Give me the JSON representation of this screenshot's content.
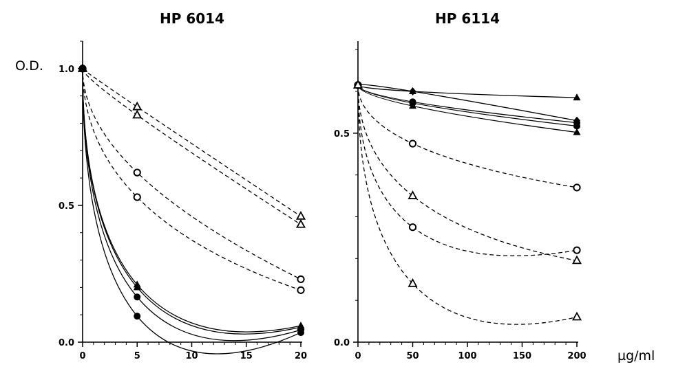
{
  "ylabel": "O.D.",
  "xunit": "µg/ml",
  "chart_data": [
    {
      "type": "line",
      "title": "HP 6014",
      "xlabel": "",
      "ylabel": "O.D.",
      "xlim": [
        0,
        20
      ],
      "ylim": [
        0,
        1.1
      ],
      "xticks": [
        "0",
        "5",
        "10",
        "15",
        "20"
      ],
      "xtick_values": [
        0,
        5,
        10,
        15,
        20
      ],
      "yticks": [
        "0.0",
        "0.5",
        "1.0"
      ],
      "ytick_values": [
        0,
        0.5,
        1.0
      ],
      "grid": false,
      "legend": "none",
      "series": [
        {
          "marker": "open-triangle",
          "style": "dashed",
          "x": [
            0,
            5,
            20
          ],
          "y": [
            1.0,
            0.86,
            0.46
          ]
        },
        {
          "marker": "open-triangle",
          "style": "dashed",
          "x": [
            0,
            5,
            20
          ],
          "y": [
            1.0,
            0.83,
            0.43
          ]
        },
        {
          "marker": "open-circle",
          "style": "dashed",
          "x": [
            0,
            5,
            20
          ],
          "y": [
            1.0,
            0.62,
            0.23
          ]
        },
        {
          "marker": "open-circle",
          "style": "dashed",
          "x": [
            0,
            5,
            20
          ],
          "y": [
            1.0,
            0.53,
            0.19
          ]
        },
        {
          "marker": "filled-triangle",
          "style": "solid",
          "x": [
            0,
            5,
            20
          ],
          "y": [
            1.0,
            0.21,
            0.06
          ]
        },
        {
          "marker": "filled-triangle",
          "style": "solid",
          "x": [
            0,
            5,
            20
          ],
          "y": [
            1.0,
            0.2,
            0.055
          ]
        },
        {
          "marker": "filled-circle",
          "style": "solid",
          "x": [
            0,
            5,
            20
          ],
          "y": [
            1.0,
            0.165,
            0.045
          ]
        },
        {
          "marker": "filled-circle",
          "style": "solid",
          "x": [
            0,
            5,
            20
          ],
          "y": [
            1.0,
            0.095,
            0.035
          ]
        }
      ]
    },
    {
      "type": "line",
      "title": "HP 6114",
      "xlabel": "µg/ml",
      "ylabel": "",
      "xlim": [
        0,
        200
      ],
      "ylim": [
        0,
        0.72
      ],
      "xticks": [
        "0",
        "50",
        "100",
        "150",
        "200"
      ],
      "xtick_values": [
        0,
        50,
        100,
        150,
        200
      ],
      "yticks": [
        "0.0",
        "0.5"
      ],
      "ytick_values": [
        0,
        0.5
      ],
      "grid": false,
      "legend": "none",
      "series": [
        {
          "marker": "filled-triangle",
          "style": "solid",
          "x": [
            0,
            50,
            200
          ],
          "y": [
            0.615,
            0.6,
            0.585
          ]
        },
        {
          "marker": "filled-diamond",
          "style": "solid",
          "x": [
            0,
            50,
            200
          ],
          "y": [
            0.615,
            0.6,
            0.53
          ]
        },
        {
          "marker": "filled-circle",
          "style": "solid",
          "x": [
            0,
            50,
            200
          ],
          "y": [
            0.615,
            0.575,
            0.525
          ]
        },
        {
          "marker": "filled-circle",
          "style": "solid",
          "x": [
            0,
            50,
            200
          ],
          "y": [
            0.615,
            0.572,
            0.517
          ]
        },
        {
          "marker": "filled-triangle",
          "style": "solid",
          "x": [
            0,
            50,
            200
          ],
          "y": [
            0.615,
            0.565,
            0.502
          ]
        },
        {
          "marker": "open-circle",
          "style": "dashed",
          "x": [
            0,
            50,
            200
          ],
          "y": [
            0.615,
            0.475,
            0.37
          ]
        },
        {
          "marker": "open-triangle",
          "style": "dashed",
          "x": [
            0,
            50,
            200
          ],
          "y": [
            0.615,
            0.35,
            0.195
          ]
        },
        {
          "marker": "open-circle",
          "style": "dashed",
          "x": [
            0,
            50,
            200
          ],
          "y": [
            0.615,
            0.275,
            0.22
          ]
        },
        {
          "marker": "open-triangle",
          "style": "dashed",
          "x": [
            0,
            50,
            200
          ],
          "y": [
            0.615,
            0.14,
            0.06
          ]
        }
      ]
    }
  ]
}
